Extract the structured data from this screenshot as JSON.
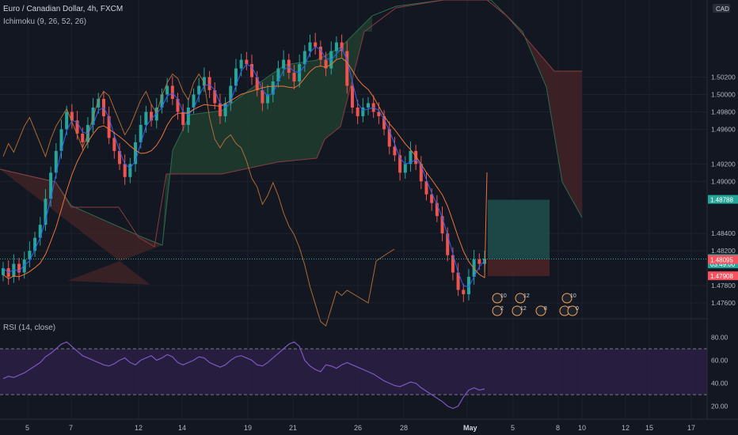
{
  "header": {
    "symbol_line": "Euro / Canadian Dollar, 4h, FXCM",
    "indicator_line": "Ichimoku (9, 26, 52, 26)",
    "rsi_label": "RSI (14, close)",
    "currency_badge": "CAD"
  },
  "price_scale": {
    "ticks": [
      "1.50200",
      "1.50000",
      "1.49800",
      "1.49600",
      "1.49200",
      "1.49000",
      "1.48400",
      "1.48200",
      "1.47800",
      "1.47600"
    ],
    "tags": [
      {
        "text": "1.48788",
        "bg": "#26a69a",
        "value": 1.48788
      },
      {
        "text": "1.48106",
        "bg": "#26a69a",
        "value": 1.48106
      },
      {
        "text": "03:49:00",
        "bg": "#26a69a",
        "value": 1.48045
      },
      {
        "text": "1.48095",
        "bg": "#f7525f",
        "value": 1.48095
      },
      {
        "text": "1.47908",
        "bg": "#f7525f",
        "value": 1.47908
      }
    ]
  },
  "rsi_scale": {
    "ticks": [
      "80.00",
      "60.00",
      "40.00",
      "20.00"
    ],
    "upper": 70,
    "lower": 30
  },
  "time_axis": [
    "5",
    "7",
    "12",
    "14",
    "19",
    "21",
    "26",
    "28",
    "May",
    "5",
    "8",
    "10",
    "12",
    "15",
    "17"
  ],
  "event_badges": [
    "10",
    "12",
    "10",
    "2",
    "12",
    "8",
    "2",
    "0"
  ],
  "colors": {
    "background": "#131722",
    "bull": "#26a69a",
    "bear": "#ef5350",
    "tenkan": "#2962ff",
    "kijun": "#e8753a",
    "lagging": "#c77836",
    "cloud_bull": "#1f3b2f",
    "cloud_bear": "#3d2226",
    "rsi_line": "#7e57c2",
    "rsi_band": "#2a1f44",
    "target_zone": "#1f4d4a",
    "stop_zone": "#4a2226"
  },
  "chart_data": {
    "type": "candlestick",
    "symbol": "Euro / Canadian Dollar",
    "timeframe": "4h",
    "source": "FXCM",
    "indicators": [
      "Ichimoku (9, 26, 52, 26)",
      "RSI (14, close)"
    ],
    "y_ticks": [
      1.502,
      1.5,
      1.498,
      1.496,
      1.492,
      1.49,
      1.484,
      1.482,
      1.478,
      1.476
    ],
    "last_price": 1.48106,
    "long_position": {
      "entry": 1.48106,
      "target": 1.48788,
      "stop": 1.47908
    },
    "rsi": {
      "upper_band": 70,
      "lower_band": 30,
      "ticks": [
        80,
        60,
        40,
        20
      ]
    },
    "close_series": [
      1.48,
      1.479,
      1.4805,
      1.4795,
      1.481,
      1.482,
      1.4835,
      1.485,
      1.488,
      1.491,
      1.4935,
      1.496,
      1.498,
      1.497,
      1.4955,
      1.4945,
      1.4965,
      1.4985,
      1.4995,
      1.4975,
      1.495,
      1.4935,
      1.492,
      1.4905,
      1.492,
      1.4945,
      1.4965,
      1.498,
      1.497,
      1.4985,
      1.5,
      1.501,
      1.4995,
      1.498,
      1.4965,
      1.4985,
      1.5,
      1.501,
      1.502,
      1.5005,
      1.499,
      1.4975,
      1.499,
      1.501,
      1.503,
      1.504,
      1.5035,
      1.502,
      1.5005,
      1.499,
      1.5,
      1.5015,
      1.503,
      1.504,
      1.5025,
      1.5015,
      1.5035,
      1.505,
      1.506,
      1.5055,
      1.504,
      1.503,
      1.505,
      1.506,
      1.505,
      1.501,
      1.4985,
      1.4975,
      1.4985,
      1.499,
      1.498,
      1.4975,
      1.496,
      1.494,
      1.493,
      1.491,
      1.492,
      1.4935,
      1.492,
      1.49,
      1.4885,
      1.4875,
      1.486,
      1.484,
      1.4815,
      1.4795,
      1.4775,
      1.477,
      1.479,
      1.481,
      1.4805,
      1.4811
    ],
    "rsi_series": [
      44,
      46,
      45,
      47,
      49,
      52,
      55,
      58,
      63,
      66,
      70,
      74,
      76,
      72,
      68,
      64,
      62,
      60,
      58,
      56,
      55,
      57,
      60,
      62,
      58,
      56,
      60,
      62,
      64,
      60,
      62,
      65,
      63,
      58,
      56,
      58,
      60,
      63,
      62,
      58,
      56,
      54,
      56,
      60,
      63,
      64,
      62,
      60,
      56,
      55,
      58,
      62,
      66,
      70,
      74,
      76,
      72,
      60,
      55,
      52,
      50,
      56,
      55,
      53,
      56,
      58,
      56,
      54,
      52,
      50,
      48,
      45,
      42,
      40,
      38,
      37,
      39,
      41,
      40,
      36,
      33,
      30,
      27,
      24,
      20,
      18,
      20,
      28,
      34,
      36,
      34,
      35
    ]
  }
}
